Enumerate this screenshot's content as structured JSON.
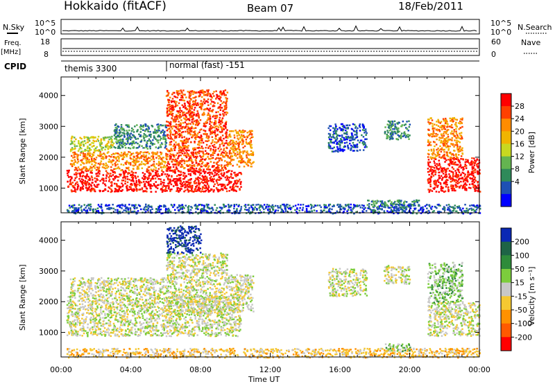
{
  "header": {
    "title": "Hokkaido (fitACF)",
    "beam": "Beam 07",
    "date": "18/Feb/2011"
  },
  "summary_panels": {
    "nsky_label": "N.Sky",
    "nsky_ticks": [
      "10^5",
      "10^0"
    ],
    "nsearch_label": "N.Search",
    "nsearch_ticks": [
      "10^5",
      "10^0"
    ],
    "freq_label": "Freq.",
    "freq_unit": "[MHz]",
    "freq_ticks": [
      "18",
      "8"
    ],
    "nave_label": "Nave",
    "nave_ticks": [
      "60",
      "0"
    ],
    "cpid_label": "CPID",
    "cpid_segments": [
      {
        "label": "themis 3300",
        "start_hour": 0
      },
      {
        "label": "normal (fast) -151",
        "start_hour": 6
      }
    ]
  },
  "chart_data": [
    {
      "type": "heatmap",
      "name": "power",
      "ylabel": "Slant Range [km]",
      "xlabel": "",
      "yticks": [
        "1000",
        "2000",
        "3000",
        "4000"
      ],
      "ylim": [
        200,
        4600
      ],
      "xlim_hours": [
        0,
        24
      ],
      "colorbar_label": "Power [dB]",
      "colorbar_ticks": [
        "28",
        "24",
        "20",
        "16",
        "12",
        "8",
        "4"
      ],
      "colorbar_colors": [
        "#ff0000",
        "#ff4000",
        "#ff8c00",
        "#f0b400",
        "#c8d820",
        "#64b450",
        "#2f8a5a",
        "#1e50b4",
        "#0000ff"
      ],
      "regions": [
        {
          "t0": 0.3,
          "t1": 10.3,
          "r0": 900,
          "r1": 1600,
          "level": 0
        },
        {
          "t0": 0.5,
          "t1": 6.0,
          "r0": 1600,
          "r1": 2200,
          "level": 2
        },
        {
          "t0": 0.5,
          "t1": 3.0,
          "r0": 2200,
          "r1": 2700,
          "level": 4
        },
        {
          "t0": 3.0,
          "t1": 6.0,
          "r0": 2300,
          "r1": 3100,
          "level": 6
        },
        {
          "t0": 6.0,
          "t1": 9.5,
          "r0": 1600,
          "r1": 4200,
          "level": 1
        },
        {
          "t0": 9.5,
          "t1": 11.0,
          "r0": 1700,
          "r1": 2900,
          "level": 2
        },
        {
          "t0": 15.3,
          "t1": 17.5,
          "r0": 2200,
          "r1": 3100,
          "level": 7
        },
        {
          "t0": 18.5,
          "t1": 20.0,
          "r0": 2600,
          "r1": 3200,
          "level": 6
        },
        {
          "t0": 21.0,
          "t1": 24.0,
          "r0": 900,
          "r1": 2000,
          "level": 0
        },
        {
          "t0": 21.0,
          "t1": 23.0,
          "r0": 2000,
          "r1": 3300,
          "level": 2
        },
        {
          "t0": 0.3,
          "t1": 24.0,
          "r0": 200,
          "r1": 500,
          "level": 7
        },
        {
          "t0": 17.5,
          "t1": 20.5,
          "r0": 400,
          "r1": 650,
          "level": 6
        }
      ]
    },
    {
      "type": "heatmap",
      "name": "velocity",
      "ylabel": "Slant Range [km]",
      "xlabel": "Time UT",
      "yticks": [
        "1000",
        "2000",
        "3000",
        "4000"
      ],
      "ylim": [
        200,
        4600
      ],
      "xticks": [
        "00:00",
        "04:00",
        "08:00",
        "12:00",
        "16:00",
        "20:00",
        "00:00"
      ],
      "xlim_hours": [
        0,
        24
      ],
      "colorbar_label": "Velocity [m s⁻¹]",
      "colorbar_ticks": [
        "200",
        "100",
        "50",
        "15",
        "-15",
        "-50",
        "-100",
        "-200"
      ],
      "colorbar_colors": [
        "#0a28b4",
        "#1e6446",
        "#2e8b3a",
        "#7ccd3c",
        "#c8c8c8",
        "#f5c832",
        "#ff9100",
        "#ff5a00",
        "#ff0000"
      ],
      "regions": [
        {
          "t0": 0.3,
          "t1": 10.3,
          "r0": 900,
          "r1": 2200,
          "level": 4
        },
        {
          "t0": 0.5,
          "t1": 6.0,
          "r0": 2200,
          "r1": 2800,
          "level": 4
        },
        {
          "t0": 6.0,
          "t1": 9.5,
          "r0": 1600,
          "r1": 3600,
          "level": 4
        },
        {
          "t0": 6.0,
          "t1": 8.0,
          "r0": 3600,
          "r1": 4500,
          "level": 0
        },
        {
          "t0": 9.5,
          "t1": 11.0,
          "r0": 1700,
          "r1": 2900,
          "level": 4
        },
        {
          "t0": 15.3,
          "t1": 17.5,
          "r0": 2200,
          "r1": 3100,
          "level": 4
        },
        {
          "t0": 18.5,
          "t1": 20.0,
          "r0": 2600,
          "r1": 3200,
          "level": 4
        },
        {
          "t0": 21.0,
          "t1": 24.0,
          "r0": 900,
          "r1": 2000,
          "level": 4
        },
        {
          "t0": 21.0,
          "t1": 23.0,
          "r0": 2000,
          "r1": 3300,
          "level": 3
        },
        {
          "t0": 0.3,
          "t1": 24.0,
          "r0": 200,
          "r1": 500,
          "level": 5
        },
        {
          "t0": 18.5,
          "t1": 20.0,
          "r0": 400,
          "r1": 650,
          "level": 3
        }
      ]
    }
  ]
}
